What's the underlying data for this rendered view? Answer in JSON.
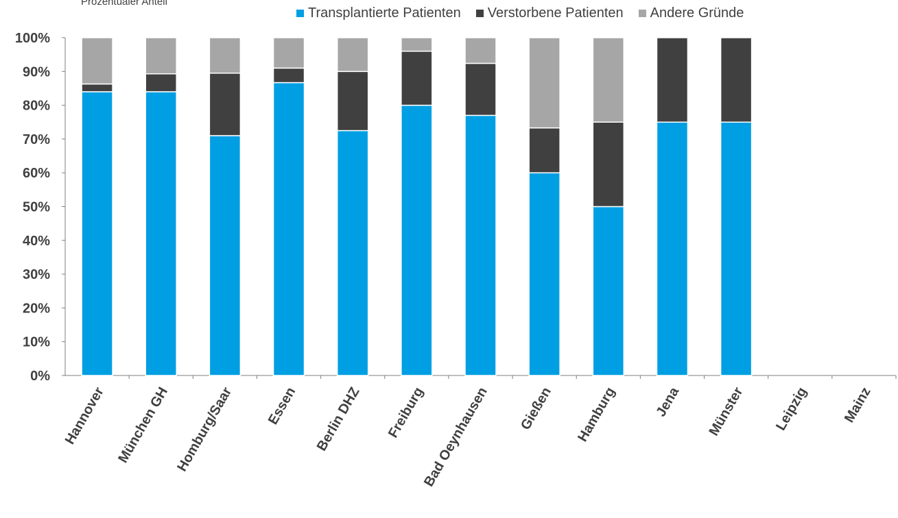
{
  "chart_data": {
    "type": "bar",
    "stacked": true,
    "percent": true,
    "ylabel": "Prozentualer Anteil",
    "xlabel": "",
    "ylim": [
      0,
      100
    ],
    "yticks": [
      "0%",
      "10%",
      "20%",
      "30%",
      "40%",
      "50%",
      "60%",
      "70%",
      "80%",
      "90%",
      "100%"
    ],
    "legend_position": "top",
    "categories": [
      "Hannover",
      "München GH",
      "Homburg/Saar",
      "Essen",
      "Berlin DHZ",
      "Freiburg",
      "Bad Oeynhausen",
      "Gießen",
      "Hamburg",
      "Jena",
      "Münster",
      "Leipzig",
      "Mainz"
    ],
    "series": [
      {
        "name": "Transplantierte Patienten",
        "color": "#009fe3",
        "values": [
          84,
          84,
          71,
          86.7,
          72.5,
          80,
          77,
          60,
          50,
          75,
          75,
          0,
          0
        ]
      },
      {
        "name": "Verstorbene Patienten",
        "color": "#404040",
        "values": [
          2.3,
          5.3,
          18.5,
          4.3,
          17.5,
          16,
          15.4,
          13.3,
          25,
          25,
          25,
          0,
          0
        ]
      },
      {
        "name": "Andere Gründe",
        "color": "#a6a6a6",
        "values": [
          13.7,
          10.7,
          10.5,
          9,
          10,
          4,
          7.6,
          26.7,
          25,
          0,
          0,
          0,
          0
        ]
      }
    ]
  }
}
